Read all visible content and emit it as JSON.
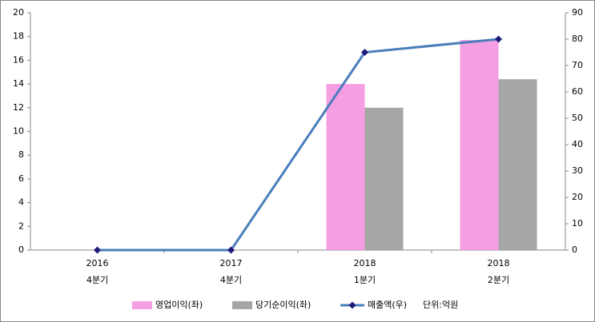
{
  "chart_data": {
    "type": "bar_line",
    "categories": [
      [
        "2016",
        "4분기"
      ],
      [
        "2017",
        "4분기"
      ],
      [
        "2018",
        "1분기"
      ],
      [
        "2018",
        "2분기"
      ]
    ],
    "series": [
      {
        "name": "영업이익(좌)",
        "color": "#f59ee3",
        "type": "bar",
        "values": [
          0,
          0,
          14,
          17.7
        ]
      },
      {
        "name": "당기순이익(좌)",
        "color": "#a6a6a6",
        "type": "bar",
        "values": [
          0,
          0,
          12,
          14.4
        ]
      },
      {
        "name": "매출액(우)",
        "color": "#4a7ebb",
        "marker_color": "#1f1a7a",
        "type": "line",
        "axis": "y2",
        "values": [
          0,
          0,
          75,
          80
        ]
      }
    ],
    "unit_note": "단위:억원",
    "ylim": [
      0,
      20
    ],
    "yticks": [
      0,
      2,
      4,
      6,
      8,
      10,
      12,
      14,
      16,
      18,
      20
    ],
    "y2lim": [
      0,
      90
    ],
    "y2ticks": [
      0,
      10,
      20,
      30,
      40,
      50,
      60,
      70,
      80,
      90
    ],
    "legend": "bottom"
  }
}
